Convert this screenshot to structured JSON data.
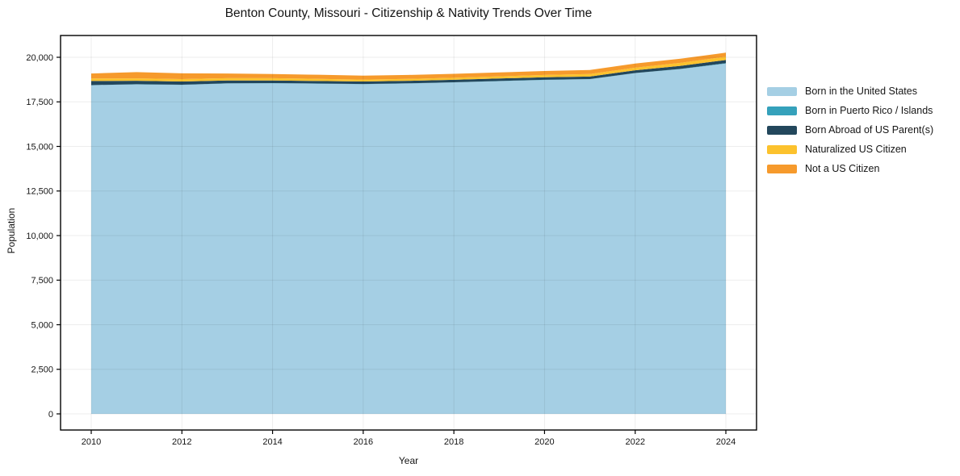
{
  "title": "Benton County, Missouri - Citizenship & Nativity Trends Over Time",
  "axes": {
    "xlabel": "Year",
    "ylabel": "Population"
  },
  "chart_data": {
    "type": "area",
    "stacked": true,
    "title": "Benton County, Missouri - Citizenship & Nativity Trends Over Time",
    "xlabel": "Year",
    "ylabel": "Population",
    "legend_position": "right-outside",
    "grid": true,
    "xlim": [
      2009.3,
      2024.7
    ],
    "ylim": [
      0,
      20000
    ],
    "xticks": [
      2010,
      2012,
      2014,
      2016,
      2018,
      2020,
      2022,
      2024
    ],
    "yticks": [
      0,
      2500,
      5000,
      7500,
      10000,
      12500,
      15000,
      17500,
      20000
    ],
    "x": [
      2010,
      2011,
      2012,
      2013,
      2014,
      2015,
      2016,
      2017,
      2018,
      2019,
      2020,
      2021,
      2022,
      2023,
      2024
    ],
    "series": [
      {
        "name": "Born in the United States",
        "color": "#a5cfe4",
        "values": [
          18430,
          18480,
          18450,
          18530,
          18540,
          18520,
          18490,
          18530,
          18590,
          18660,
          18730,
          18770,
          19110,
          19340,
          19650
        ]
      },
      {
        "name": "Born in Puerto Rico / Islands",
        "color": "#35a1bb",
        "values": [
          10,
          10,
          10,
          10,
          10,
          10,
          10,
          10,
          10,
          10,
          10,
          10,
          10,
          10,
          20
        ]
      },
      {
        "name": "Born Abroad of US Parent(s)",
        "color": "#23475c",
        "values": [
          230,
          190,
          180,
          160,
          150,
          140,
          140,
          140,
          140,
          140,
          140,
          140,
          150,
          170,
          180
        ]
      },
      {
        "name": "Naturalized US Citizen",
        "color": "#fcc22d",
        "values": [
          140,
          140,
          140,
          130,
          130,
          120,
          110,
          110,
          110,
          120,
          130,
          140,
          150,
          170,
          180
        ]
      },
      {
        "name": "Not a US Citizen",
        "color": "#f69a2c",
        "values": [
          280,
          350,
          320,
          260,
          230,
          230,
          220,
          220,
          220,
          220,
          220,
          230,
          230,
          230,
          230
        ]
      }
    ]
  }
}
